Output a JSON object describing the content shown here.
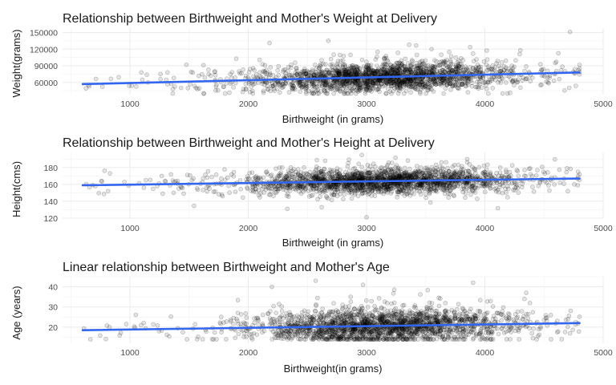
{
  "chart_data": [
    {
      "type": "scatter",
      "title": "Relationship between Birthweight and Mother's Weight at Delivery",
      "xlabel": "Birthweight (in grams)",
      "ylabel": "Weight(grams)",
      "xlim": [
        430,
        5000
      ],
      "ylim": [
        38000,
        158000
      ],
      "x_ticks": [
        1000,
        2000,
        3000,
        4000,
        5000
      ],
      "x_tick_labels": [
        "1000",
        "2000",
        "3000",
        "4000",
        "5000"
      ],
      "y_ticks": [
        60000,
        90000,
        120000,
        150000
      ],
      "y_tick_labels": [
        "60000",
        "90000",
        "120000",
        "150000"
      ],
      "grid": true,
      "point_color": "#000000",
      "fit_color": "#3366ee",
      "fit_line": {
        "x": [
          600,
          4800
        ],
        "y": [
          57000,
          78000
        ]
      },
      "point_cloud": {
        "x_mean": 3150,
        "x_sd": 560,
        "x_min": 600,
        "x_max": 4800,
        "y_at_x_min": 57000,
        "y_at_x_max": 78000,
        "y_sd": 12500,
        "y_min": 40000,
        "y_max": 151000,
        "n": 2100
      },
      "outliers": [
        {
          "x": 4720,
          "y": 151000
        },
        {
          "x": 2180,
          "y": 131000
        },
        {
          "x": 3550,
          "y": 120000
        },
        {
          "x": 4300,
          "y": 118000
        },
        {
          "x": 3900,
          "y": 112000
        }
      ]
    },
    {
      "type": "scatter",
      "title": "Relationship between Birthweight and Mother's Height at Delivery",
      "xlabel": "Birthweight (in grams)",
      "ylabel": "Height(cms)",
      "xlim": [
        430,
        5000
      ],
      "ylim": [
        119,
        198
      ],
      "x_ticks": [
        1000,
        2000,
        3000,
        4000,
        5000
      ],
      "x_tick_labels": [
        "1000",
        "2000",
        "3000",
        "4000",
        "5000"
      ],
      "y_ticks": [
        120,
        140,
        160,
        180
      ],
      "y_tick_labels": [
        "120",
        "140",
        "160",
        "180"
      ],
      "grid": true,
      "point_color": "#000000",
      "fit_color": "#3366ee",
      "fit_line": {
        "x": [
          600,
          4800
        ],
        "y": [
          159,
          167
        ]
      },
      "point_cloud": {
        "x_mean": 3150,
        "x_sd": 560,
        "x_min": 600,
        "x_max": 4800,
        "y_at_x_min": 159,
        "y_at_x_max": 167,
        "y_sd": 7,
        "y_min": 126,
        "y_max": 192,
        "n": 2100
      },
      "outliers": [
        {
          "x": 2960,
          "y": 195
        },
        {
          "x": 3000,
          "y": 121
        },
        {
          "x": 2330,
          "y": 131
        },
        {
          "x": 3850,
          "y": 190
        },
        {
          "x": 2650,
          "y": 188
        }
      ]
    },
    {
      "type": "scatter",
      "title": "Linear relationship between Birthweight and Mother's Age",
      "xlabel": "Birthweight(in grams)",
      "ylabel": "Age (years)",
      "xlim": [
        430,
        5000
      ],
      "ylim": [
        12,
        45
      ],
      "x_ticks": [
        1000,
        2000,
        3000,
        4000,
        5000
      ],
      "x_tick_labels": [
        "1000",
        "2000",
        "3000",
        "4000",
        "5000"
      ],
      "y_ticks": [
        20,
        30,
        40
      ],
      "y_tick_labels": [
        "20",
        "30",
        "40"
      ],
      "grid": true,
      "point_color": "#000000",
      "fit_color": "#3366ee",
      "fit_line": {
        "x": [
          600,
          4800
        ],
        "y": [
          18.5,
          22
        ]
      },
      "point_cloud": {
        "x_mean": 3150,
        "x_sd": 560,
        "x_min": 600,
        "x_max": 4800,
        "y_at_x_min": 18.5,
        "y_at_x_max": 22,
        "y_sd": 4.2,
        "y_min": 14,
        "y_max": 42,
        "n": 2100
      },
      "outliers": [
        {
          "x": 2570,
          "y": 43
        },
        {
          "x": 3900,
          "y": 42
        },
        {
          "x": 2970,
          "y": 41
        },
        {
          "x": 2200,
          "y": 40
        },
        {
          "x": 4350,
          "y": 37
        }
      ]
    }
  ]
}
